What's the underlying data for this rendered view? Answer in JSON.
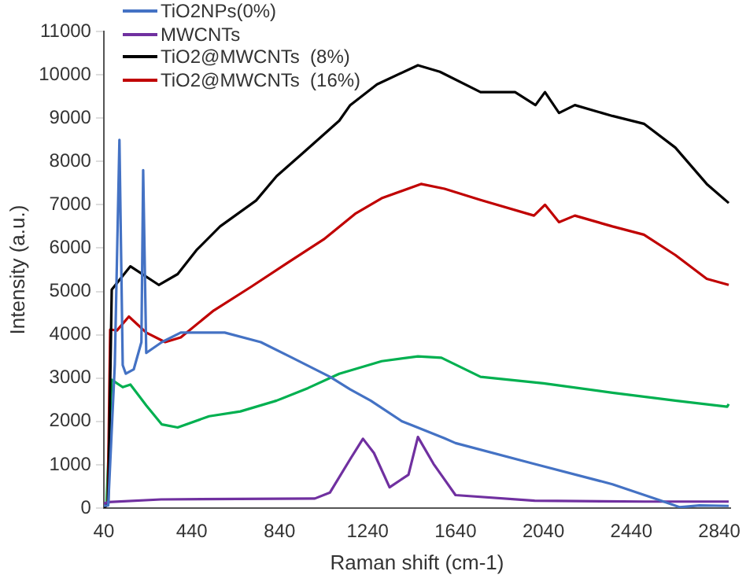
{
  "chart_data": {
    "type": "line",
    "xlabel": "Raman shift (cm-1)",
    "ylabel": "Intensity (a.u.)",
    "xlim": [
      40,
      2890
    ],
    "xticks": [
      40,
      440,
      840,
      1240,
      1640,
      2040,
      2440,
      2840
    ],
    "ylim": [
      0,
      11000
    ],
    "yticks": [
      0,
      1000,
      2000,
      3000,
      4000,
      5000,
      6000,
      7000,
      8000,
      9000,
      10000,
      11000
    ],
    "grid": false,
    "legend": "top left",
    "marker": "none",
    "line_style": "solid",
    "series": [
      {
        "name": "TiO2NPs(0%)",
        "color": "#4472c4",
        "x": [
          40,
          60,
          90,
          111,
          126,
          140,
          176,
          211,
          219,
          233,
          304,
          390,
          590,
          754,
          897,
          1069,
          1161,
          1254,
          1397,
          1447,
          1590,
          1640,
          1997,
          2354,
          2569,
          2661,
          2750,
          2883
        ],
        "values": [
          50,
          60,
          3320,
          8500,
          3300,
          3100,
          3200,
          3830,
          7800,
          3580,
          3830,
          4050,
          4050,
          3830,
          3470,
          3030,
          2740,
          2480,
          2000,
          1900,
          1610,
          1500,
          1020,
          550,
          180,
          20,
          60,
          50
        ]
      },
      {
        "name": "MWCNTs",
        "color": "#7030a0",
        "x": [
          40,
          60,
          300,
          1000,
          1069,
          1161,
          1219,
          1269,
          1340,
          1426,
          1469,
          1540,
          1590,
          1640,
          2000,
          2500,
          2883
        ],
        "values": [
          100,
          140,
          200,
          220,
          360,
          1130,
          1600,
          1270,
          480,
          770,
          1640,
          1020,
          660,
          300,
          170,
          150,
          150
        ]
      },
      {
        "name": "TiO2@MWCNTs  (8%)",
        "color": "#000000",
        "x": [
          40,
          60,
          76,
          161,
          290,
          376,
          461,
          569,
          733,
          826,
          947,
          1111,
          1161,
          1283,
          1469,
          1569,
          1754,
          1911,
          2004,
          2047,
          2111,
          2183,
          2354,
          2497,
          2640,
          2783,
          2883
        ],
        "values": [
          0,
          100,
          5040,
          5580,
          5150,
          5400,
          5950,
          6500,
          7100,
          7660,
          8200,
          8940,
          9300,
          9780,
          10220,
          10070,
          9600,
          9600,
          9300,
          9600,
          9120,
          9300,
          9050,
          8870,
          8320,
          7480,
          7040
        ]
      },
      {
        "name": "TiO2@MWCNTs  (16%)",
        "color": "#c00000",
        "x": [
          40,
          58,
          69,
          100,
          154,
          233,
          319,
          390,
          540,
          711,
          876,
          1040,
          1183,
          1304,
          1483,
          1590,
          1754,
          1997,
          2047,
          2111,
          2183,
          2354,
          2497,
          2640,
          2783,
          2883
        ],
        "values": [
          0,
          100,
          4120,
          4100,
          4420,
          4050,
          3830,
          3940,
          4560,
          5110,
          5660,
          6200,
          6790,
          7150,
          7480,
          7370,
          7110,
          6750,
          7000,
          6600,
          6750,
          6500,
          6310,
          5840,
          5290,
          5150
        ]
      },
      {
        "color": "#00b050",
        "x": [
          40,
          52,
          76,
          126,
          161,
          233,
          304,
          376,
          519,
          661,
          826,
          969,
          1111,
          1304,
          1469,
          1576,
          1754,
          2040,
          2354,
          2640,
          2876,
          2883
        ],
        "values": [
          0,
          100,
          2960,
          2790,
          2850,
          2370,
          1930,
          1860,
          2120,
          2230,
          2480,
          2770,
          3100,
          3390,
          3500,
          3470,
          3030,
          2880,
          2660,
          2480,
          2340,
          2400
        ]
      }
    ]
  }
}
